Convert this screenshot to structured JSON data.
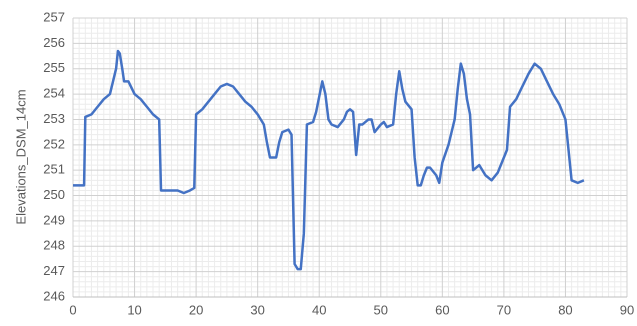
{
  "chart_data": {
    "type": "line",
    "y_label": "Elevations_DSM_14cm",
    "xlim": [
      0,
      90
    ],
    "xticks": [
      0,
      10,
      20,
      30,
      40,
      50,
      60,
      70,
      80,
      90
    ],
    "ylim": [
      246,
      257
    ],
    "yticks": [
      246,
      247,
      248,
      249,
      250,
      251,
      252,
      253,
      254,
      255,
      256,
      257
    ],
    "grid": true,
    "minor_grid": true,
    "x": [
      0,
      1.8,
      2,
      3,
      4,
      5,
      6,
      6.5,
      7,
      7.3,
      7.6,
      8,
      8.3,
      9,
      10,
      11,
      12,
      13,
      14,
      14.3,
      15,
      16,
      17,
      18,
      19,
      19.7,
      20,
      21,
      22,
      23,
      24,
      25,
      26,
      27,
      28,
      29,
      30,
      31,
      31.5,
      32,
      33,
      33.5,
      34,
      35,
      35.5,
      36,
      36.5,
      37,
      37.5,
      38,
      39,
      39.5,
      40,
      40.5,
      41,
      41.5,
      42,
      43,
      44,
      44.5,
      45,
      45.5,
      46,
      46.5,
      47,
      48,
      48.5,
      49,
      50,
      50.5,
      51,
      52,
      52.5,
      53,
      53.5,
      54,
      55,
      55.5,
      56,
      56.5,
      57,
      57.5,
      58,
      59,
      59.5,
      60,
      61,
      61.5,
      62,
      62.5,
      63,
      63.5,
      64,
      64.5,
      65,
      66,
      67,
      68,
      69,
      70,
      70.5,
      71,
      72,
      73,
      74,
      75,
      76,
      77,
      78,
      79,
      80,
      80.5,
      81,
      82,
      83
    ],
    "series": [
      {
        "name": "Elevations_DSM_14cm",
        "color": "#4472c4",
        "values": [
          250.4,
          250.4,
          253.1,
          253.2,
          253.5,
          253.8,
          254.0,
          254.5,
          255.0,
          255.7,
          255.6,
          255.0,
          254.5,
          254.5,
          254.0,
          253.8,
          253.5,
          253.2,
          253.0,
          250.2,
          250.2,
          250.2,
          250.2,
          250.1,
          250.2,
          250.3,
          253.2,
          253.4,
          253.7,
          254.0,
          254.3,
          254.4,
          254.3,
          254.0,
          253.7,
          253.5,
          253.2,
          252.8,
          252.1,
          251.5,
          251.5,
          252.1,
          252.5,
          252.6,
          252.4,
          247.3,
          247.1,
          247.1,
          248.5,
          252.8,
          252.9,
          253.3,
          253.9,
          254.5,
          254.0,
          253.0,
          252.8,
          252.7,
          253.0,
          253.3,
          253.4,
          253.3,
          251.6,
          252.8,
          252.8,
          253.0,
          253.0,
          252.5,
          252.8,
          252.9,
          252.7,
          252.8,
          254.0,
          254.9,
          254.2,
          253.7,
          253.4,
          251.5,
          250.4,
          250.4,
          250.8,
          251.1,
          251.1,
          250.8,
          250.5,
          251.3,
          252.0,
          252.5,
          253.0,
          254.2,
          255.2,
          254.8,
          253.8,
          253.2,
          251.0,
          251.2,
          250.8,
          250.6,
          250.9,
          251.5,
          251.8,
          253.5,
          253.8,
          254.3,
          254.8,
          255.2,
          255.0,
          254.5,
          254.0,
          253.6,
          253.0,
          251.8,
          250.6,
          250.5,
          250.6
        ]
      }
    ]
  }
}
